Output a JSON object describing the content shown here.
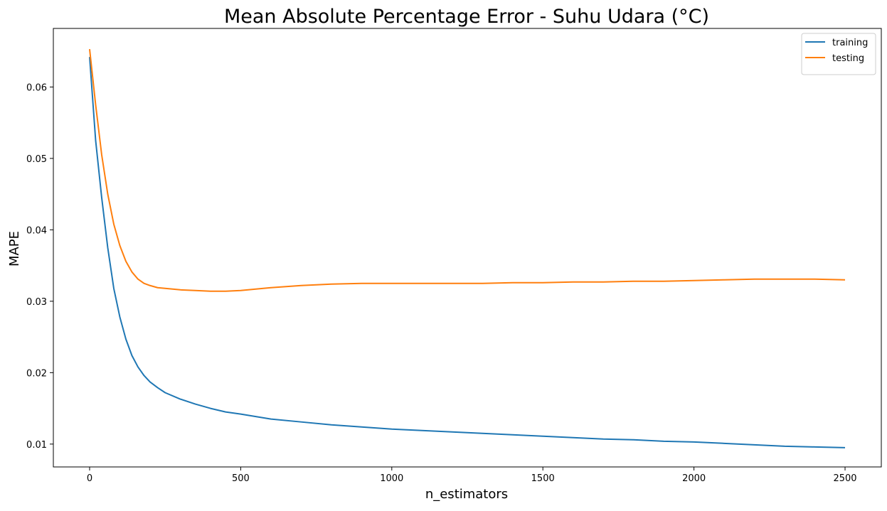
{
  "chart_data": {
    "type": "line",
    "title": "Mean Absolute Percentage Error - Suhu Udara (°C)",
    "xlabel": "n_estimators",
    "ylabel": "MAPE",
    "xlim": [
      -120,
      2620
    ],
    "ylim": [
      0.0068,
      0.0682
    ],
    "xticks": [
      0,
      500,
      1000,
      1500,
      2000,
      2500
    ],
    "xtick_labels": [
      "0",
      "500",
      "1000",
      "1500",
      "2000",
      "2500"
    ],
    "yticks": [
      0.01,
      0.02,
      0.03,
      0.04,
      0.05,
      0.06
    ],
    "ytick_labels": [
      "0.01",
      "0.02",
      "0.03",
      "0.04",
      "0.05",
      "0.06"
    ],
    "grid": false,
    "legend_position": "top-right",
    "series": [
      {
        "name": "training",
        "color": "#1f77b4",
        "x": [
          0,
          20,
          40,
          60,
          80,
          100,
          120,
          140,
          160,
          180,
          200,
          225,
          250,
          300,
          350,
          400,
          450,
          500,
          600,
          700,
          800,
          900,
          1000,
          1100,
          1200,
          1300,
          1400,
          1500,
          1600,
          1700,
          1800,
          1900,
          2000,
          2100,
          2200,
          2300,
          2400,
          2500
        ],
        "y": [
          0.0642,
          0.0525,
          0.0445,
          0.0375,
          0.0318,
          0.0278,
          0.0247,
          0.0224,
          0.0208,
          0.0196,
          0.0187,
          0.0179,
          0.0172,
          0.0163,
          0.0156,
          0.015,
          0.0145,
          0.0142,
          0.0135,
          0.0131,
          0.0127,
          0.0124,
          0.0121,
          0.0119,
          0.0117,
          0.0115,
          0.0113,
          0.0111,
          0.0109,
          0.0107,
          0.0106,
          0.0104,
          0.0103,
          0.0101,
          0.0099,
          0.0097,
          0.0096,
          0.0095
        ]
      },
      {
        "name": "testing",
        "color": "#ff7f0e",
        "x": [
          0,
          20,
          40,
          60,
          80,
          100,
          120,
          140,
          160,
          180,
          200,
          225,
          250,
          300,
          350,
          400,
          450,
          500,
          600,
          700,
          800,
          900,
          1000,
          1100,
          1200,
          1300,
          1400,
          1500,
          1600,
          1700,
          1800,
          1900,
          2000,
          2100,
          2200,
          2300,
          2400,
          2500
        ],
        "y": [
          0.0653,
          0.0575,
          0.0505,
          0.045,
          0.0408,
          0.0378,
          0.0356,
          0.0341,
          0.0331,
          0.0325,
          0.0322,
          0.0319,
          0.0318,
          0.0316,
          0.0315,
          0.0314,
          0.0314,
          0.0315,
          0.0319,
          0.0322,
          0.0324,
          0.0325,
          0.0325,
          0.0325,
          0.0325,
          0.0325,
          0.0326,
          0.0326,
          0.0327,
          0.0327,
          0.0328,
          0.0328,
          0.0329,
          0.033,
          0.0331,
          0.0331,
          0.0331,
          0.033
        ]
      }
    ]
  }
}
